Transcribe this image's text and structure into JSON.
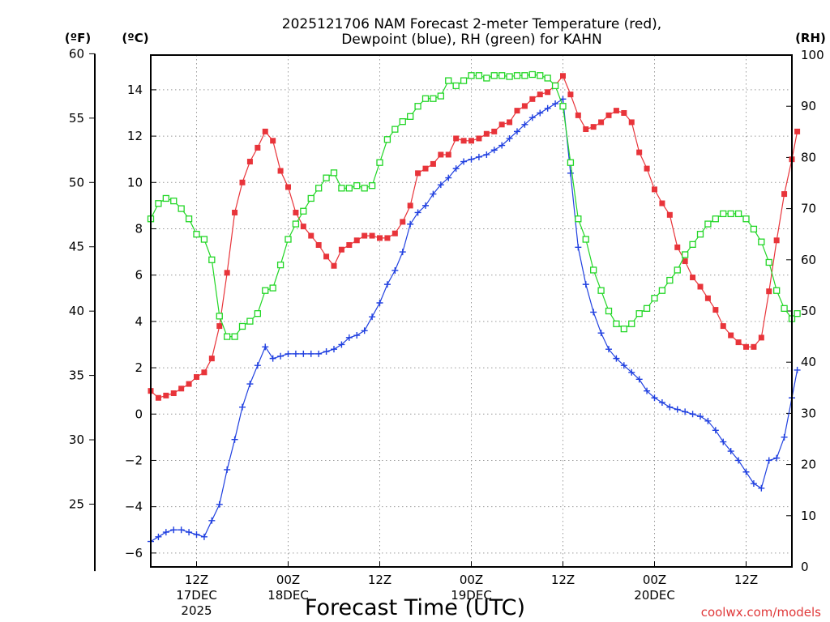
{
  "chart_data": {
    "type": "line",
    "title_line1": "2025121706 NAM Forecast 2-meter Temperature (red),",
    "title_line2": "Dewpoint (blue), RH (green) for KAHN",
    "xlabel": "Forecast Time (UTC)",
    "credit": "coolwx.com/models",
    "unit_labels": {
      "fahrenheit": "(ºF)",
      "celsius": "(ºC)",
      "rh": "(RH)"
    },
    "x_range_hours": [
      0,
      84
    ],
    "x_ticks": [
      {
        "hour": 6,
        "lines": [
          "12Z",
          "17DEC",
          "2025"
        ]
      },
      {
        "hour": 18,
        "lines": [
          "00Z",
          "18DEC"
        ]
      },
      {
        "hour": 30,
        "lines": [
          "12Z"
        ]
      },
      {
        "hour": 42,
        "lines": [
          "00Z",
          "19DEC"
        ]
      },
      {
        "hour": 54,
        "lines": [
          "12Z"
        ]
      },
      {
        "hour": 66,
        "lines": [
          "00Z",
          "20DEC"
        ]
      },
      {
        "hour": 78,
        "lines": [
          "12Z"
        ]
      }
    ],
    "celsius_axis": {
      "range": [
        -6.6,
        15.5
      ],
      "ticks": [
        -6,
        -4,
        -2,
        0,
        2,
        4,
        6,
        8,
        10,
        12,
        14
      ],
      "tick_labels": [
        "−6",
        "−4",
        "−2",
        "0",
        "2",
        "4",
        "6",
        "8",
        "10",
        "12",
        "14"
      ]
    },
    "fahrenheit_axis": {
      "ticks": [
        25,
        30,
        35,
        40,
        45,
        50,
        55,
        60
      ],
      "line_bottom_f": 19.8
    },
    "rh_axis": {
      "range": [
        0,
        100
      ],
      "ticks": [
        0,
        10,
        20,
        30,
        40,
        50,
        60,
        70,
        80,
        90,
        100
      ]
    },
    "series": [
      {
        "name": "Temperature",
        "color": "#e8343a",
        "marker": "filled-square",
        "axis": "celsius",
        "points": [
          [
            0,
            1.0
          ],
          [
            1,
            0.7
          ],
          [
            2,
            0.8
          ],
          [
            3,
            0.9
          ],
          [
            4,
            1.1
          ],
          [
            5,
            1.3
          ],
          [
            6,
            1.6
          ],
          [
            7,
            1.8
          ],
          [
            8,
            2.4
          ],
          [
            9,
            3.8
          ],
          [
            10,
            6.1
          ],
          [
            11,
            8.7
          ],
          [
            12,
            10.0
          ],
          [
            13,
            10.9
          ],
          [
            14,
            11.5
          ],
          [
            15,
            12.2
          ],
          [
            16,
            11.8
          ],
          [
            17,
            10.5
          ],
          [
            18,
            9.8
          ],
          [
            19,
            8.7
          ],
          [
            20,
            8.1
          ],
          [
            21,
            7.7
          ],
          [
            22,
            7.3
          ],
          [
            23,
            6.8
          ],
          [
            24,
            6.4
          ],
          [
            25,
            7.1
          ],
          [
            26,
            7.3
          ],
          [
            27,
            7.5
          ],
          [
            28,
            7.7
          ],
          [
            29,
            7.7
          ],
          [
            30,
            7.6
          ],
          [
            31,
            7.6
          ],
          [
            32,
            7.8
          ],
          [
            33,
            8.3
          ],
          [
            34,
            9.0
          ],
          [
            35,
            10.4
          ],
          [
            36,
            10.6
          ],
          [
            37,
            10.8
          ],
          [
            38,
            11.2
          ],
          [
            39,
            11.2
          ],
          [
            40,
            11.9
          ],
          [
            41,
            11.8
          ],
          [
            42,
            11.8
          ],
          [
            43,
            11.9
          ],
          [
            44,
            12.1
          ],
          [
            45,
            12.2
          ],
          [
            46,
            12.5
          ],
          [
            47,
            12.6
          ],
          [
            48,
            13.1
          ],
          [
            49,
            13.3
          ],
          [
            50,
            13.6
          ],
          [
            51,
            13.8
          ],
          [
            52,
            13.9
          ],
          [
            53,
            14.2
          ],
          [
            54,
            14.6
          ],
          [
            55,
            13.8
          ],
          [
            56,
            12.9
          ],
          [
            57,
            12.3
          ],
          [
            58,
            12.4
          ],
          [
            59,
            12.6
          ],
          [
            60,
            12.9
          ],
          [
            61,
            13.1
          ],
          [
            62,
            13.0
          ],
          [
            63,
            12.6
          ],
          [
            64,
            11.3
          ],
          [
            65,
            10.6
          ],
          [
            66,
            9.7
          ],
          [
            67,
            9.1
          ],
          [
            68,
            8.6
          ],
          [
            69,
            7.2
          ],
          [
            70,
            6.6
          ],
          [
            71,
            5.9
          ],
          [
            72,
            5.5
          ],
          [
            73,
            5.0
          ],
          [
            74,
            4.5
          ],
          [
            75,
            3.8
          ],
          [
            76,
            3.4
          ],
          [
            77,
            3.1
          ],
          [
            78,
            2.9
          ],
          [
            79,
            2.9
          ],
          [
            80,
            3.3
          ],
          [
            81,
            5.3
          ],
          [
            82,
            7.5
          ],
          [
            83,
            9.5
          ],
          [
            84,
            11.0
          ],
          [
            84.7,
            12.2
          ]
        ]
      },
      {
        "name": "Dewpoint",
        "color": "#2040e0",
        "marker": "plus",
        "axis": "celsius",
        "points": [
          [
            0,
            -5.5
          ],
          [
            1,
            -5.3
          ],
          [
            2,
            -5.1
          ],
          [
            3,
            -5.0
          ],
          [
            4,
            -5.0
          ],
          [
            5,
            -5.1
          ],
          [
            6,
            -5.2
          ],
          [
            7,
            -5.3
          ],
          [
            8,
            -4.6
          ],
          [
            9,
            -3.9
          ],
          [
            10,
            -2.4
          ],
          [
            11,
            -1.1
          ],
          [
            12,
            0.3
          ],
          [
            13,
            1.3
          ],
          [
            14,
            2.1
          ],
          [
            15,
            2.9
          ],
          [
            16,
            2.4
          ],
          [
            17,
            2.5
          ],
          [
            18,
            2.6
          ],
          [
            19,
            2.6
          ],
          [
            20,
            2.6
          ],
          [
            21,
            2.6
          ],
          [
            22,
            2.6
          ],
          [
            23,
            2.7
          ],
          [
            24,
            2.8
          ],
          [
            25,
            3.0
          ],
          [
            26,
            3.3
          ],
          [
            27,
            3.4
          ],
          [
            28,
            3.6
          ],
          [
            29,
            4.2
          ],
          [
            30,
            4.8
          ],
          [
            31,
            5.6
          ],
          [
            32,
            6.2
          ],
          [
            33,
            7.0
          ],
          [
            34,
            8.2
          ],
          [
            35,
            8.7
          ],
          [
            36,
            9.0
          ],
          [
            37,
            9.5
          ],
          [
            38,
            9.9
          ],
          [
            39,
            10.2
          ],
          [
            40,
            10.6
          ],
          [
            41,
            10.9
          ],
          [
            42,
            11.0
          ],
          [
            43,
            11.1
          ],
          [
            44,
            11.2
          ],
          [
            45,
            11.4
          ],
          [
            46,
            11.6
          ],
          [
            47,
            11.9
          ],
          [
            48,
            12.2
          ],
          [
            49,
            12.5
          ],
          [
            50,
            12.8
          ],
          [
            51,
            13.0
          ],
          [
            52,
            13.2
          ],
          [
            53,
            13.4
          ],
          [
            54,
            13.6
          ],
          [
            55,
            10.4
          ],
          [
            56,
            7.2
          ],
          [
            57,
            5.6
          ],
          [
            58,
            4.4
          ],
          [
            59,
            3.5
          ],
          [
            60,
            2.8
          ],
          [
            61,
            2.4
          ],
          [
            62,
            2.1
          ],
          [
            63,
            1.8
          ],
          [
            64,
            1.5
          ],
          [
            65,
            1.0
          ],
          [
            66,
            0.7
          ],
          [
            67,
            0.5
          ],
          [
            68,
            0.3
          ],
          [
            69,
            0.2
          ],
          [
            70,
            0.1
          ],
          [
            71,
            0.0
          ],
          [
            72,
            -0.1
          ],
          [
            73,
            -0.3
          ],
          [
            74,
            -0.7
          ],
          [
            75,
            -1.2
          ],
          [
            76,
            -1.6
          ],
          [
            77,
            -2.0
          ],
          [
            78,
            -2.5
          ],
          [
            79,
            -3.0
          ],
          [
            80,
            -3.2
          ],
          [
            81,
            -2.0
          ],
          [
            82,
            -1.9
          ],
          [
            83,
            -1.0
          ],
          [
            84,
            0.7
          ],
          [
            84.7,
            1.9
          ]
        ]
      },
      {
        "name": "RH",
        "color": "#21d625",
        "marker": "open-square",
        "axis": "rh",
        "points": [
          [
            0,
            68
          ],
          [
            1,
            71
          ],
          [
            2,
            72
          ],
          [
            3,
            71.5
          ],
          [
            4,
            70
          ],
          [
            5,
            68
          ],
          [
            6,
            65
          ],
          [
            7,
            64
          ],
          [
            8,
            60
          ],
          [
            9,
            49
          ],
          [
            10,
            45
          ],
          [
            11,
            45
          ],
          [
            12,
            47
          ],
          [
            13,
            48
          ],
          [
            14,
            49.5
          ],
          [
            15,
            54
          ],
          [
            16,
            54.5
          ],
          [
            17,
            59
          ],
          [
            18,
            64
          ],
          [
            19,
            67
          ],
          [
            20,
            69.5
          ],
          [
            21,
            72
          ],
          [
            22,
            74
          ],
          [
            23,
            76
          ],
          [
            24,
            77
          ],
          [
            25,
            74
          ],
          [
            26,
            74
          ],
          [
            27,
            74.5
          ],
          [
            28,
            74
          ],
          [
            29,
            74.5
          ],
          [
            30,
            79
          ],
          [
            31,
            83.5
          ],
          [
            32,
            85.5
          ],
          [
            33,
            87
          ],
          [
            34,
            88
          ],
          [
            35,
            90
          ],
          [
            36,
            91.5
          ],
          [
            37,
            91.5
          ],
          [
            38,
            92
          ],
          [
            39,
            95
          ],
          [
            40,
            94
          ],
          [
            41,
            95
          ],
          [
            42,
            96
          ],
          [
            43,
            96
          ],
          [
            44,
            95.5
          ],
          [
            45,
            96
          ],
          [
            46,
            96
          ],
          [
            47,
            95.8
          ],
          [
            48,
            96
          ],
          [
            49,
            96
          ],
          [
            50,
            96.2
          ],
          [
            51,
            96
          ],
          [
            52,
            95.5
          ],
          [
            53,
            94
          ],
          [
            54,
            90
          ],
          [
            55,
            79
          ],
          [
            56,
            68
          ],
          [
            57,
            64
          ],
          [
            58,
            58
          ],
          [
            59,
            54
          ],
          [
            60,
            50
          ],
          [
            61,
            47.5
          ],
          [
            62,
            46.5
          ],
          [
            63,
            47.5
          ],
          [
            64,
            49.5
          ],
          [
            65,
            50.5
          ],
          [
            66,
            52.5
          ],
          [
            67,
            54
          ],
          [
            68,
            56
          ],
          [
            69,
            58
          ],
          [
            70,
            61
          ],
          [
            71,
            63
          ],
          [
            72,
            65
          ],
          [
            73,
            67
          ],
          [
            74,
            68
          ],
          [
            75,
            69
          ],
          [
            76,
            69
          ],
          [
            77,
            69
          ],
          [
            78,
            68
          ],
          [
            79,
            66
          ],
          [
            80,
            63.5
          ],
          [
            81,
            59.5
          ],
          [
            82,
            54
          ],
          [
            83,
            50.5
          ],
          [
            84,
            48.5
          ],
          [
            84.7,
            49.5
          ]
        ]
      }
    ]
  }
}
